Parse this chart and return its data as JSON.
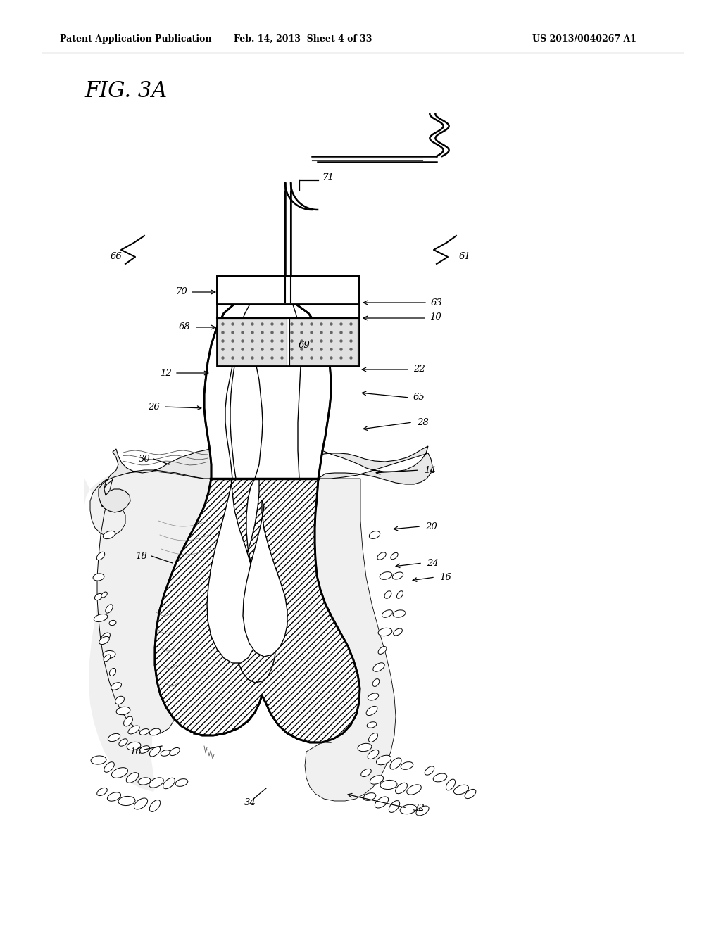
{
  "bg_color": "#ffffff",
  "line_color": "#000000",
  "header_left": "Patent Application Publication",
  "header_mid": "Feb. 14, 2013  Sheet 4 of 33",
  "header_right": "US 2013/0040267 A1",
  "fig_label": "FIG. 3A",
  "header_fontsize": 9,
  "fig_fontsize": 22,
  "label_fontsize": 9.5
}
